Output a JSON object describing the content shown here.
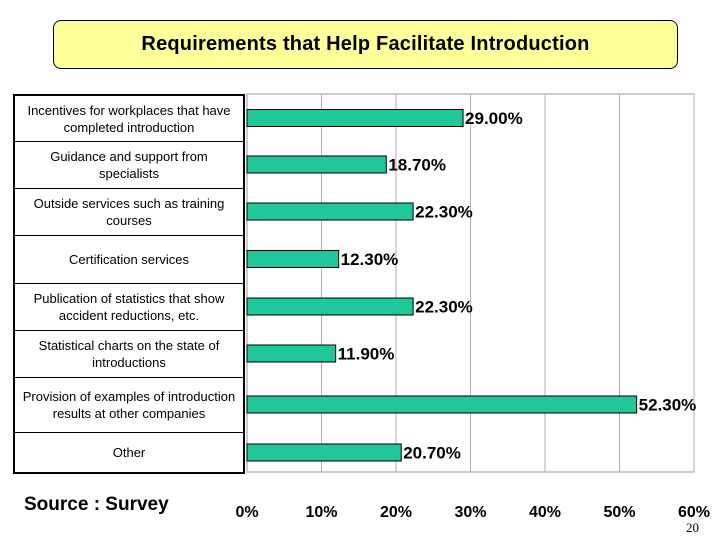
{
  "title": "Requirements that Help Facilitate Introduction",
  "source": "Source : Survey",
  "page_number": "20",
  "colors": {
    "bar": "#1fc79a",
    "title_bg": "#ffff99"
  },
  "chart_data": {
    "type": "bar",
    "orientation": "horizontal",
    "title": "Requirements that Help Facilitate Introduction",
    "categories": [
      "Incentives for workplaces that have completed introduction",
      "Guidance and support from specialists",
      "Outside services such as training courses",
      "Certification services",
      "Publication of statistics that show accident reductions, etc.",
      "Statistical charts on the state of introductions",
      "Provision of examples of introduction results at other companies",
      "Other"
    ],
    "values": [
      29.0,
      18.7,
      22.3,
      12.3,
      22.3,
      11.9,
      52.3,
      20.7
    ],
    "value_labels": [
      "29.00%",
      "18.70%",
      "22.30%",
      "12.30%",
      "22.30%",
      "11.90%",
      "52.30%",
      "20.70%"
    ],
    "x_ticks": [
      "0%",
      "10%",
      "20%",
      "30%",
      "40%",
      "50%",
      "60%"
    ],
    "xlim": [
      0,
      60
    ],
    "grid": true,
    "xlabel": "",
    "ylabel": ""
  }
}
